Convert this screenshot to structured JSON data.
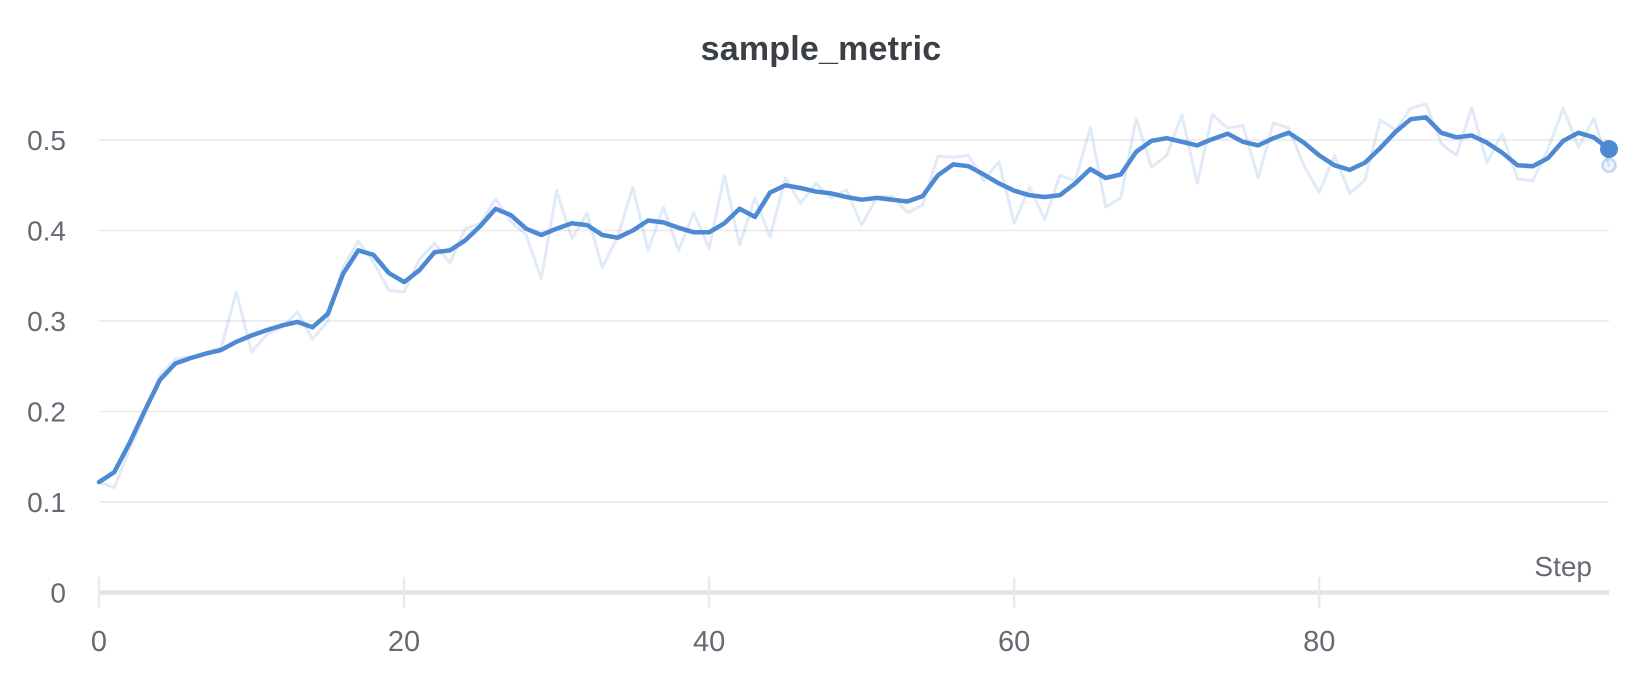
{
  "chart": {
    "title": "sample_metric",
    "x_axis_label": "Step",
    "colors": {
      "accent_line": "#4e89d3",
      "original_line": "rgba(78,137,211,0.17)",
      "gridline": "#e9e9ec",
      "axis_line": "#e3e3e7",
      "tick_mark": "#ebebee",
      "title_text": "#3a4045",
      "label_text": "#696975",
      "background": "#ffffff"
    }
  },
  "chart_data": {
    "type": "line",
    "title": "sample_metric",
    "xlabel": "Step",
    "ylabel": "",
    "xlim": [
      0,
      99
    ],
    "ylim": [
      0,
      0.555
    ],
    "grid": "horizontal",
    "legend": "none",
    "x_start": 0,
    "x_step": 1,
    "n_points": 100,
    "x_ticks": [
      {
        "value": 0,
        "label": "0"
      },
      {
        "value": 20,
        "label": "20"
      },
      {
        "value": 40,
        "label": "40"
      },
      {
        "value": 60,
        "label": "60"
      },
      {
        "value": 80,
        "label": "80"
      }
    ],
    "y_ticks": [
      {
        "value": 0,
        "label": "0"
      },
      {
        "value": 0.1,
        "label": "0.1"
      },
      {
        "value": 0.2,
        "label": "0.2"
      },
      {
        "value": 0.3,
        "label": "0.3"
      },
      {
        "value": 0.4,
        "label": "0.4"
      },
      {
        "value": 0.5,
        "label": "0.5"
      }
    ],
    "series": [
      {
        "name": "original",
        "role": "raw-unsmoothed",
        "values": [
          0.122,
          0.116,
          0.158,
          0.196,
          0.24,
          0.258,
          0.26,
          0.265,
          0.27,
          0.332,
          0.266,
          0.285,
          0.293,
          0.31,
          0.28,
          0.3,
          0.36,
          0.388,
          0.365,
          0.334,
          0.332,
          0.368,
          0.386,
          0.364,
          0.402,
          0.408,
          0.435,
          0.41,
          0.395,
          0.347,
          0.444,
          0.391,
          0.419,
          0.359,
          0.393,
          0.448,
          0.378,
          0.426,
          0.378,
          0.42,
          0.38,
          0.461,
          0.384,
          0.436,
          0.393,
          0.458,
          0.43,
          0.452,
          0.436,
          0.445,
          0.406,
          0.437,
          0.438,
          0.42,
          0.428,
          0.482,
          0.481,
          0.483,
          0.455,
          0.476,
          0.408,
          0.448,
          0.412,
          0.461,
          0.455,
          0.514,
          0.426,
          0.436,
          0.524,
          0.47,
          0.483,
          0.528,
          0.452,
          0.528,
          0.513,
          0.516,
          0.458,
          0.519,
          0.513,
          0.472,
          0.442,
          0.483,
          0.441,
          0.456,
          0.522,
          0.511,
          0.535,
          0.54,
          0.496,
          0.483,
          0.536,
          0.475,
          0.507,
          0.457,
          0.455,
          0.49,
          0.535,
          0.492,
          0.524,
          0.472
        ]
      },
      {
        "name": "smoothed",
        "role": "smoothed",
        "values": [
          0.122,
          0.133,
          0.165,
          0.201,
          0.235,
          0.253,
          0.259,
          0.264,
          0.268,
          0.277,
          0.284,
          0.29,
          0.295,
          0.299,
          0.293,
          0.308,
          0.352,
          0.378,
          0.373,
          0.353,
          0.343,
          0.356,
          0.376,
          0.378,
          0.389,
          0.405,
          0.424,
          0.417,
          0.402,
          0.395,
          0.402,
          0.408,
          0.406,
          0.395,
          0.392,
          0.4,
          0.411,
          0.409,
          0.403,
          0.398,
          0.398,
          0.408,
          0.424,
          0.415,
          0.442,
          0.45,
          0.447,
          0.443,
          0.441,
          0.437,
          0.434,
          0.436,
          0.434,
          0.432,
          0.438,
          0.461,
          0.473,
          0.471,
          0.462,
          0.452,
          0.444,
          0.439,
          0.437,
          0.439,
          0.452,
          0.468,
          0.458,
          0.462,
          0.487,
          0.499,
          0.502,
          0.498,
          0.494,
          0.501,
          0.507,
          0.498,
          0.494,
          0.502,
          0.508,
          0.497,
          0.483,
          0.472,
          0.467,
          0.475,
          0.491,
          0.509,
          0.523,
          0.525,
          0.508,
          0.503,
          0.505,
          0.497,
          0.486,
          0.472,
          0.471,
          0.48,
          0.499,
          0.508,
          0.503,
          0.49
        ]
      }
    ],
    "end_markers": {
      "smoothed": {
        "x": 99,
        "y": 0.49
      },
      "original": {
        "x": 99,
        "y": 0.472
      }
    }
  }
}
